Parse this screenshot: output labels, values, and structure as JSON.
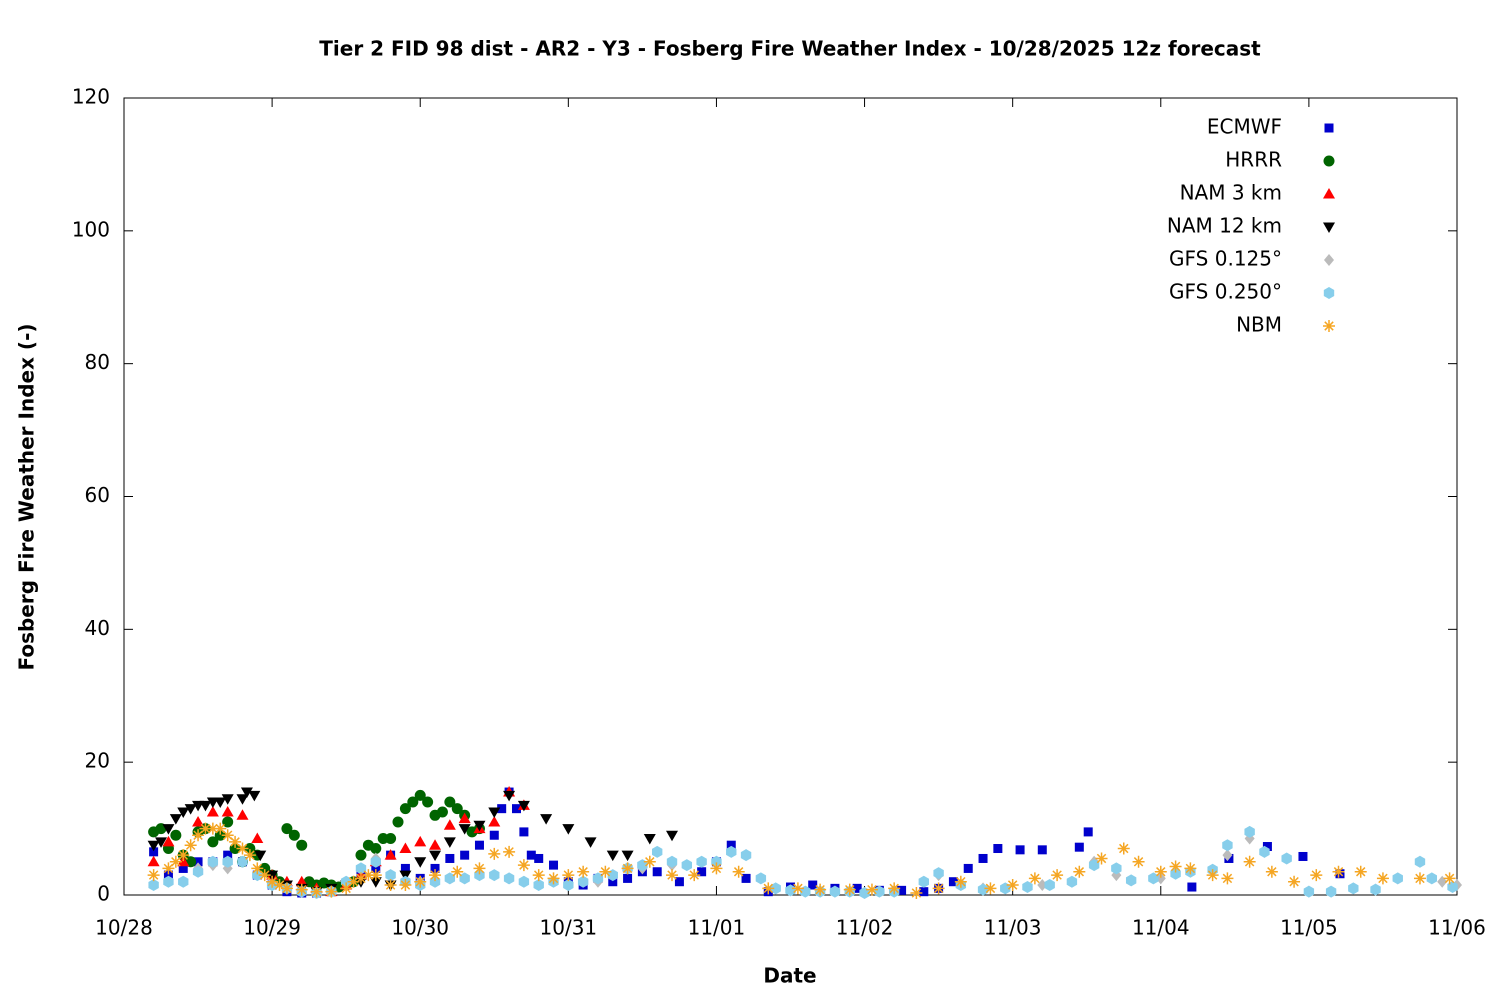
{
  "chart_data": {
    "type": "scatter",
    "title": "Tier 2 FID 98 dist - AR2 - Y3 - Fosberg Fire Weather Index - 10/28/2025 12z forecast",
    "x_label": "Date",
    "y_label": "Fosberg Fire Weather Index (-)",
    "xlim": [
      0,
      9
    ],
    "ylim": [
      0,
      120
    ],
    "xticks": [
      {
        "value": 0,
        "label": "10/28"
      },
      {
        "value": 1,
        "label": "10/29"
      },
      {
        "value": 2,
        "label": "10/30"
      },
      {
        "value": 3,
        "label": "10/31"
      },
      {
        "value": 4,
        "label": "11/01"
      },
      {
        "value": 5,
        "label": "11/02"
      },
      {
        "value": 6,
        "label": "11/03"
      },
      {
        "value": 7,
        "label": "11/04"
      },
      {
        "value": 8,
        "label": "11/05"
      },
      {
        "value": 9,
        "label": "11/06"
      }
    ],
    "yticks": [
      0,
      20,
      40,
      60,
      80,
      100,
      120
    ],
    "legend": "top-right",
    "series": [
      {
        "name": "ECMWF",
        "color": "#0000cc",
        "marker": "square",
        "x": [
          0.2,
          0.3,
          0.4,
          0.5,
          0.6,
          0.7,
          0.8,
          0.9,
          1.0,
          1.1,
          1.2,
          1.3,
          1.4,
          1.5,
          1.6,
          1.7,
          1.8,
          1.9,
          2.0,
          2.1,
          2.2,
          2.3,
          2.4,
          2.5,
          2.55,
          2.6,
          2.65,
          2.7,
          2.75,
          2.8,
          2.9,
          3.0,
          3.1,
          3.2,
          3.3,
          3.4,
          3.5,
          3.6,
          3.75,
          3.9,
          4.0,
          4.1,
          4.2,
          4.35,
          4.5,
          4.65,
          4.8,
          4.95,
          5.1,
          5.25,
          5.4,
          5.5,
          5.6,
          5.7,
          5.8,
          5.9,
          6.05,
          6.2,
          6.45,
          6.51,
          7.21,
          7.46,
          7.72,
          7.96,
          8.21
        ],
        "values": [
          6.5,
          3,
          4,
          5,
          5,
          6,
          5,
          3,
          1.5,
          0.5,
          0.3,
          0.3,
          0.5,
          1.5,
          3,
          4,
          6,
          4,
          2.5,
          4,
          5.5,
          6,
          7.5,
          9,
          13,
          15.5,
          13,
          9.5,
          6,
          5.5,
          4.5,
          2,
          1.5,
          2.5,
          2,
          2.5,
          3.5,
          3.5,
          2,
          3.5,
          5,
          7.5,
          2.5,
          0.5,
          1.2,
          1.5,
          1,
          1,
          0.7,
          0.7,
          0.5,
          1,
          2,
          4,
          5.5,
          7,
          6.8,
          6.8,
          7.2,
          9.5,
          1.2,
          5.5,
          7.3,
          5.8,
          3.2
        ]
      },
      {
        "name": "HRRR",
        "color": "#006400",
        "marker": "circle",
        "x": [
          0.2,
          0.25,
          0.3,
          0.35,
          0.4,
          0.45,
          0.5,
          0.55,
          0.6,
          0.65,
          0.7,
          0.75,
          0.8,
          0.85,
          0.9,
          0.95,
          1.0,
          1.05,
          1.1,
          1.15,
          1.2,
          1.25,
          1.3,
          1.35,
          1.4,
          1.45,
          1.5,
          1.55,
          1.6,
          1.65,
          1.7,
          1.75,
          1.8,
          1.85,
          1.9,
          1.95,
          2.0,
          2.05,
          2.1,
          2.15,
          2.2,
          2.25,
          2.3,
          2.35,
          2.4
        ],
        "values": [
          9.5,
          10,
          7,
          9,
          6,
          5,
          9.5,
          10,
          8,
          9,
          11,
          7,
          5,
          7,
          6,
          4,
          3,
          2,
          10,
          9,
          7.5,
          2,
          1.5,
          1.8,
          1.5,
          1.2,
          1.5,
          2,
          6,
          7.5,
          7,
          8.5,
          8.5,
          11,
          13,
          14,
          15,
          14,
          12,
          12.5,
          14,
          13,
          12,
          9.5,
          10
        ]
      },
      {
        "name": "NAM 3 km",
        "color": "#ff0000",
        "marker": "triangle",
        "x": [
          0.2,
          0.3,
          0.4,
          0.5,
          0.6,
          0.7,
          0.8,
          0.9,
          1.0,
          1.1,
          1.2,
          1.3,
          1.4,
          1.5,
          1.6,
          1.7,
          1.8,
          1.9,
          2.0,
          2.1,
          2.2,
          2.3,
          2.4,
          2.5,
          2.6,
          2.7
        ],
        "values": [
          5,
          8,
          5,
          11,
          12.5,
          12.5,
          12,
          8.5,
          3,
          2,
          2,
          1,
          0.5,
          1.5,
          3,
          5,
          6,
          7,
          8,
          7.5,
          10.5,
          11.5,
          10,
          11,
          15.5,
          13.5
        ]
      },
      {
        "name": "NAM 12 km",
        "color": "#000000",
        "marker": "triangle-down",
        "x": [
          0.2,
          0.25,
          0.3,
          0.35,
          0.4,
          0.45,
          0.5,
          0.55,
          0.6,
          0.65,
          0.7,
          0.8,
          0.83,
          0.88,
          0.92,
          1.0,
          1.1,
          1.2,
          1.3,
          1.4,
          1.5,
          1.6,
          1.7,
          1.8,
          1.9,
          2.0,
          2.1,
          2.2,
          2.3,
          2.4,
          2.5,
          2.6,
          2.7,
          2.85,
          3.0,
          3.15,
          3.3,
          3.4,
          3.55,
          3.7
        ],
        "values": [
          7.5,
          8,
          10,
          11.5,
          12.5,
          13,
          13.5,
          13.5,
          14,
          14,
          14.5,
          14.5,
          15.5,
          15,
          6,
          3,
          1.5,
          1,
          0.5,
          1,
          1.5,
          2,
          2,
          1.5,
          3,
          5,
          6,
          8,
          10,
          10.5,
          12.5,
          15,
          13.5,
          11.5,
          10,
          8,
          6,
          6,
          8.5,
          9
        ]
      },
      {
        "name": "GFS 0.125°",
        "color": "#bbbbbb",
        "marker": "diamond",
        "x": [
          0.5,
          0.6,
          0.7,
          0.8,
          0.9,
          1.0,
          1.2,
          1.4,
          1.6,
          1.7,
          1.8,
          2.0,
          2.4,
          2.8,
          3.2,
          3.5,
          3.7,
          4.0,
          4.2,
          4.4,
          4.8,
          5.2,
          5.5,
          5.8,
          6.2,
          6.55,
          6.7,
          7.0,
          7.45,
          7.6,
          7.7,
          8.0,
          8.45,
          8.6,
          8.75,
          8.9,
          9.0
        ],
        "values": [
          4,
          4.5,
          4,
          5,
          3,
          1.5,
          0.5,
          0.5,
          4,
          5.5,
          3,
          2,
          3,
          1.5,
          2,
          4,
          4.5,
          5,
          6,
          1,
          0.5,
          0.5,
          3,
          1,
          1.5,
          5,
          3,
          2.5,
          6,
          8.5,
          6.5,
          0.5,
          0.8,
          2.5,
          5,
          2,
          1.5
        ]
      },
      {
        "name": "GFS 0.250°",
        "color": "#87ceeb",
        "marker": "hexagon",
        "x": [
          0.2,
          0.3,
          0.4,
          0.5,
          0.6,
          0.7,
          0.8,
          0.9,
          1.0,
          1.1,
          1.2,
          1.3,
          1.4,
          1.5,
          1.6,
          1.7,
          1.8,
          1.9,
          2.0,
          2.1,
          2.2,
          2.3,
          2.4,
          2.5,
          2.6,
          2.7,
          2.8,
          2.9,
          3.0,
          3.1,
          3.2,
          3.3,
          3.4,
          3.5,
          3.6,
          3.7,
          3.8,
          3.9,
          4.0,
          4.1,
          4.2,
          4.3,
          4.4,
          4.5,
          4.6,
          4.7,
          4.8,
          4.9,
          5.0,
          5.1,
          5.2,
          5.4,
          5.5,
          5.65,
          5.8,
          5.95,
          6.1,
          6.25,
          6.4,
          6.55,
          6.7,
          6.8,
          6.95,
          7.1,
          7.2,
          7.35,
          7.45,
          7.6,
          7.7,
          7.85,
          8.0,
          8.15,
          8.3,
          8.45,
          8.6,
          8.75,
          8.83,
          8.97
        ],
        "values": [
          1.5,
          2,
          2,
          3.5,
          5,
          5,
          5,
          3,
          1.5,
          1,
          0.5,
          0.3,
          0.5,
          2,
          4,
          5,
          3,
          2,
          1.5,
          2,
          2.5,
          2.5,
          3,
          3,
          2.5,
          2,
          1.5,
          2,
          1.5,
          2,
          2.5,
          3,
          4,
          4.5,
          6.5,
          5,
          4.5,
          5,
          5,
          6.5,
          6,
          2.5,
          1,
          0.7,
          0.5,
          0.5,
          0.5,
          0.5,
          0.3,
          0.5,
          0.5,
          2,
          3.3,
          1.5,
          0.8,
          1,
          1.2,
          1.5,
          2,
          4.5,
          4,
          2.2,
          2.5,
          3.2,
          3.5,
          3.8,
          7.5,
          9.5,
          6.5,
          5.5,
          0.5,
          0.5,
          1,
          0.8,
          2.5,
          5,
          2.5,
          1.2
        ]
      },
      {
        "name": "NBM",
        "color": "#f5a623",
        "marker": "asterisk",
        "x": [
          0.2,
          0.3,
          0.35,
          0.4,
          0.45,
          0.5,
          0.55,
          0.6,
          0.65,
          0.7,
          0.75,
          0.8,
          0.85,
          0.9,
          0.95,
          1.0,
          1.05,
          1.1,
          1.2,
          1.3,
          1.4,
          1.5,
          1.55,
          1.6,
          1.65,
          1.7,
          1.8,
          1.9,
          2.0,
          2.1,
          2.25,
          2.4,
          2.5,
          2.6,
          2.7,
          2.8,
          2.9,
          3.0,
          3.1,
          3.25,
          3.4,
          3.55,
          3.7,
          3.85,
          4.0,
          4.15,
          4.35,
          4.55,
          4.7,
          4.9,
          5.05,
          5.2,
          5.35,
          5.5,
          5.65,
          5.85,
          6.0,
          6.15,
          6.3,
          6.45,
          6.6,
          6.75,
          6.85,
          7.0,
          7.1,
          7.2,
          7.35,
          7.45,
          7.6,
          7.75,
          7.9,
          8.05,
          8.2,
          8.35,
          8.5,
          8.75,
          8.95
        ],
        "values": [
          3,
          4,
          5,
          6,
          7.5,
          9,
          10,
          10,
          10,
          9,
          8,
          7,
          6,
          4,
          3,
          2,
          1.5,
          1,
          0.8,
          0.5,
          0.5,
          1,
          2,
          2.5,
          3,
          3,
          1.5,
          1.5,
          2,
          3,
          3.5,
          4,
          6.2,
          6.5,
          4.5,
          3,
          2.5,
          3,
          3.5,
          3.5,
          4,
          5,
          3,
          3,
          4,
          3.5,
          1,
          1,
          0.8,
          0.8,
          0.8,
          1,
          0.3,
          1,
          2,
          1,
          1.5,
          2.5,
          3,
          3.5,
          5.5,
          7,
          5,
          3.5,
          4.3,
          4,
          3,
          2.5,
          5,
          3.5,
          2,
          3,
          3.5,
          3.5,
          2.5,
          2.5,
          2.5
        ]
      }
    ]
  }
}
